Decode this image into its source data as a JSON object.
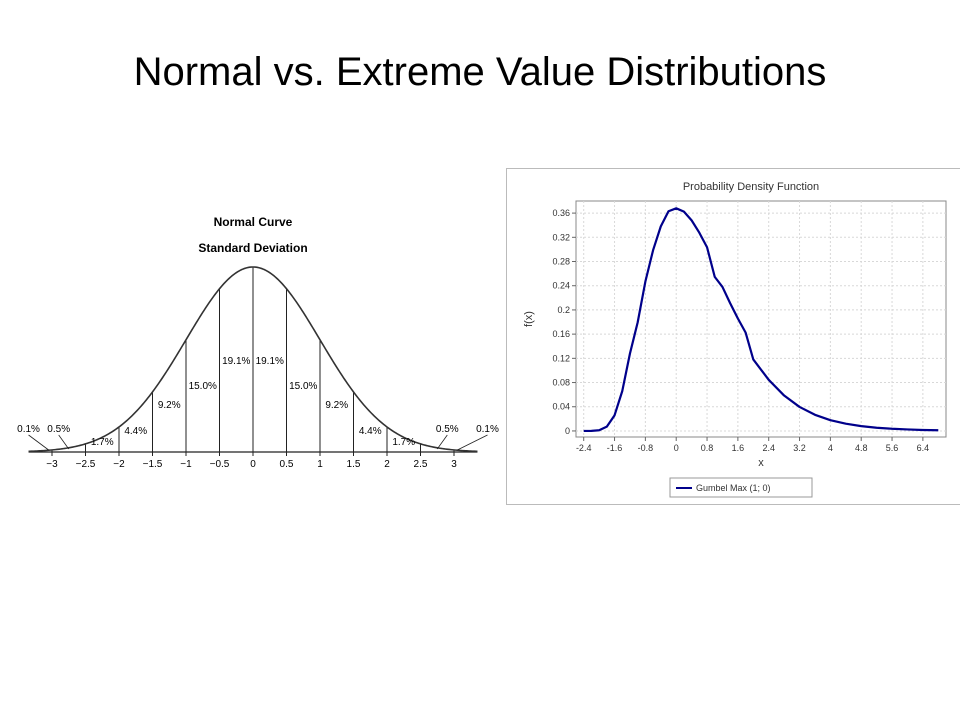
{
  "slide": {
    "title": "Normal vs. Extreme Value Distributions"
  },
  "chart_data": [
    {
      "type": "area",
      "title": "Normal Curve",
      "subtitle": "Standard Deviation",
      "x_ticks": [
        "−3",
        "−2.5",
        "−2",
        "−1.5",
        "−1",
        "−0.5",
        "0",
        "0.5",
        "1",
        "1.5",
        "2",
        "2.5",
        "3"
      ],
      "xlim": [
        -3.35,
        3.35
      ],
      "segments": [
        {
          "from": -3.5,
          "to": -3.0,
          "label": "0.1%"
        },
        {
          "from": -3.0,
          "to": -2.5,
          "label": "0.5%"
        },
        {
          "from": -2.5,
          "to": -2.0,
          "label": "1.7%"
        },
        {
          "from": -2.0,
          "to": -1.5,
          "label": "4.4%"
        },
        {
          "from": -1.5,
          "to": -1.0,
          "label": "9.2%"
        },
        {
          "from": -1.0,
          "to": -0.5,
          "label": "15.0%"
        },
        {
          "from": -0.5,
          "to": 0.0,
          "label": "19.1%"
        },
        {
          "from": 0.0,
          "to": 0.5,
          "label": "19.1%"
        },
        {
          "from": 0.5,
          "to": 1.0,
          "label": "15.0%"
        },
        {
          "from": 1.0,
          "to": 1.5,
          "label": "9.2%"
        },
        {
          "from": 1.5,
          "to": 2.0,
          "label": "4.4%"
        },
        {
          "from": 2.0,
          "to": 2.5,
          "label": "1.7%"
        },
        {
          "from": 2.5,
          "to": 3.0,
          "label": "0.5%"
        },
        {
          "from": 3.0,
          "to": 3.5,
          "label": "0.1%"
        }
      ],
      "line_color": "#333333"
    },
    {
      "type": "line",
      "title": "Probability Density Function",
      "xlabel": "x",
      "ylabel": "f(x)",
      "xlim": [
        -2.6,
        7.0
      ],
      "ylim": [
        -0.01,
        0.38
      ],
      "x_ticks": [
        "-2.4",
        "-1.6",
        "-0.8",
        "0",
        "0.8",
        "1.6",
        "2.4",
        "3.2",
        "4",
        "4.8",
        "5.6",
        "6.4"
      ],
      "y_ticks": [
        "0",
        "0.04",
        "0.08",
        "0.12",
        "0.16",
        "0.2",
        "0.24",
        "0.28",
        "0.32",
        "0.36"
      ],
      "grid": true,
      "legend": "bottom",
      "series": [
        {
          "name": "Gumbel Max  (1; 0)",
          "color": "#00008b",
          "x": [
            -2.4,
            -2.2,
            -2.0,
            -1.8,
            -1.6,
            -1.4,
            -1.2,
            -1.0,
            -0.8,
            -0.6,
            -0.4,
            -0.2,
            0.0,
            0.2,
            0.4,
            0.6,
            0.8,
            1.0,
            1.2,
            1.4,
            1.6,
            1.8,
            2.0,
            2.4,
            2.8,
            3.2,
            3.6,
            4.0,
            4.4,
            4.8,
            5.2,
            5.6,
            6.0,
            6.4,
            6.8
          ],
          "y": [
            0.0,
            0.0001,
            0.0012,
            0.0071,
            0.0258,
            0.0658,
            0.128,
            0.1794,
            0.2469,
            0.2987,
            0.3381,
            0.3631,
            0.3679,
            0.3624,
            0.348,
            0.3276,
            0.3036,
            0.2546,
            0.238,
            0.211,
            0.1858,
            0.1627,
            0.1182,
            0.0845,
            0.0585,
            0.0397,
            0.0267,
            0.0178,
            0.012,
            0.008,
            0.0053,
            0.0036,
            0.0025,
            0.0016,
            0.0011
          ]
        }
      ]
    }
  ]
}
